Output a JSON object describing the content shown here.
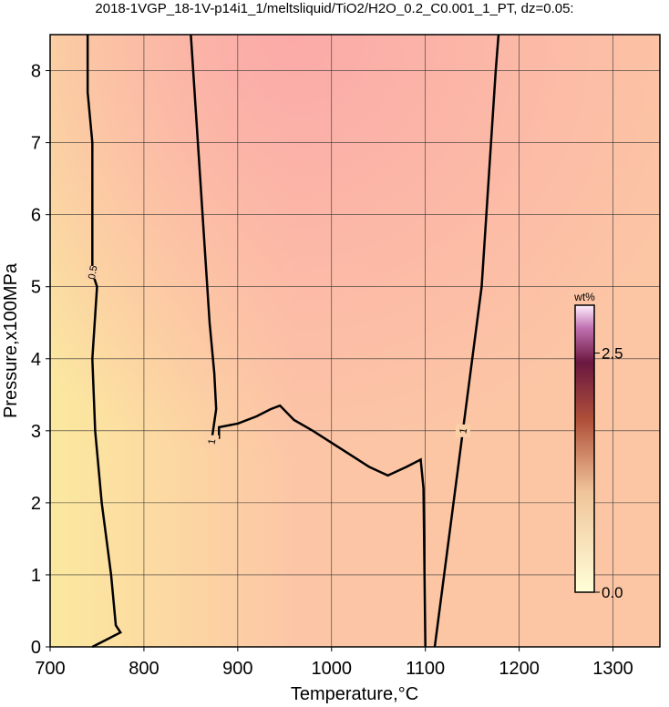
{
  "chart_data": {
    "type": "contour",
    "title": "2018-1VGP_18-1V-p14i1_1/meltsliquid/TiO2/H2O_0.2_C0.001_1_PT, dz=0.05:",
    "xlabel": "Temperature,°C",
    "ylabel": "Pressure,x100MPa",
    "xlim": [
      700,
      1350
    ],
    "ylim": [
      0,
      8.5
    ],
    "xticks": [
      700,
      800,
      900,
      1000,
      1100,
      1200,
      1300
    ],
    "yticks": [
      0,
      1,
      2,
      3,
      4,
      5,
      6,
      7,
      8
    ],
    "grid": true,
    "series": [
      {
        "name": "0.5",
        "color": "#000000",
        "x": [
          740,
          740,
          745,
          745,
          745,
          750,
          745,
          748,
          755,
          765,
          770,
          775,
          760,
          745
        ],
        "y": [
          8.5,
          7.7,
          7,
          6,
          5.2,
          5,
          4,
          3,
          2,
          1,
          0.3,
          0.2,
          0.1,
          0
        ]
      },
      {
        "name": "1",
        "color": "#000000",
        "x": [
          850,
          855,
          860,
          865,
          870,
          875,
          877,
          872,
          880,
          880,
          900,
          920,
          935,
          945,
          960,
          980,
          1010,
          1040,
          1060,
          1080,
          1095,
          1098,
          1100
        ],
        "y": [
          8.5,
          7.5,
          6.5,
          5.5,
          4.5,
          3.8,
          3.3,
          2.85,
          2.9,
          3.05,
          3.1,
          3.2,
          3.3,
          3.35,
          3.15,
          3.0,
          2.75,
          2.5,
          2.38,
          2.5,
          2.6,
          2.2,
          0
        ]
      },
      {
        "name": "1",
        "color": "#000000",
        "x": [
          1110,
          1120,
          1130,
          1140,
          1150,
          1160,
          1165,
          1170,
          1175,
          1178
        ],
        "y": [
          0,
          1,
          2,
          3,
          4,
          5,
          6,
          7,
          8,
          8.5
        ]
      }
    ],
    "colorbar": {
      "label": "wt%",
      "clim": [
        0,
        3
      ],
      "ticks": [
        {
          "value": 0,
          "label": "0.0"
        },
        {
          "value": 2.5,
          "label": "2.5"
        }
      ]
    }
  }
}
